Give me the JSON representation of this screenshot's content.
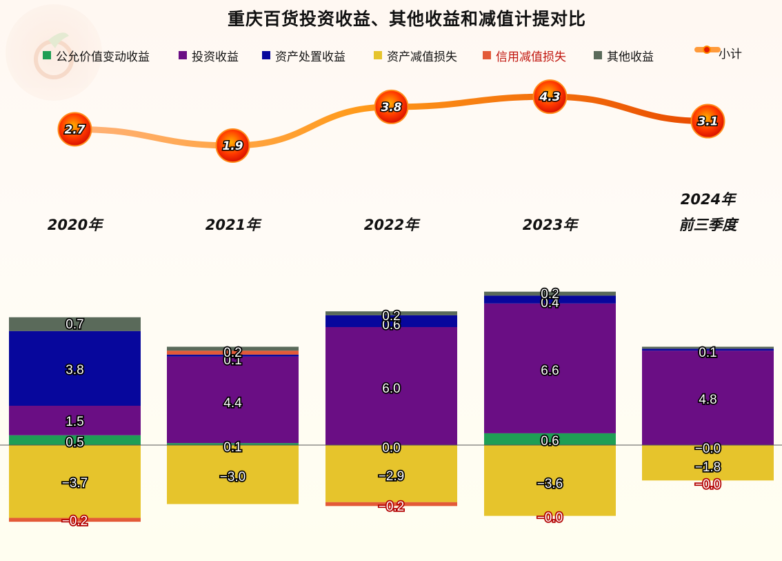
{
  "title": "重庆百货投资收益、其他收益和减值计提对比",
  "chart_data": {
    "type": "bar",
    "stacked": true,
    "categories": [
      "2020年",
      "2021年",
      "2022年",
      "2023年",
      "2024年前三季度"
    ],
    "category_lines": [
      [
        "2020年"
      ],
      [
        "2021年"
      ],
      [
        "2022年"
      ],
      [
        "2023年"
      ],
      [
        "2024年",
        "前三季度"
      ]
    ],
    "series": [
      {
        "name": "公允价值变动收益",
        "color": "#1e9e55",
        "values": [
          0.5,
          0.1,
          0.0,
          0.6,
          -0.0
        ],
        "labels": [
          "0.5",
          "0.1",
          "0.0",
          "0.6",
          "−0.0"
        ]
      },
      {
        "name": "投资收益",
        "color": "#6a0e84",
        "values": [
          1.5,
          4.4,
          6.0,
          6.6,
          4.8
        ],
        "labels": [
          "1.5",
          "4.4",
          "6.0",
          "6.6",
          "4.8"
        ]
      },
      {
        "name": "资产处置收益",
        "color": "#07079c",
        "values": [
          3.8,
          0.1,
          0.6,
          0.4,
          0.1
        ],
        "labels": [
          "3.8",
          "0.1",
          "0.6",
          "0.4",
          "0.1"
        ]
      },
      {
        "name": "资产减值损失",
        "color": "#e6c42c",
        "values": [
          -3.7,
          -3.0,
          -2.9,
          -3.6,
          -1.8
        ],
        "labels": [
          "−3.7",
          "−3.0",
          "−2.9",
          "−3.6",
          "−1.8"
        ]
      },
      {
        "name": "信用减值损失",
        "color": "#e35a38",
        "values": [
          -0.2,
          0.2,
          -0.2,
          -0.0,
          -0.0
        ],
        "labels": [
          "−0.2",
          "0.2",
          "−0.2",
          "−0.0",
          "−0.0"
        ]
      },
      {
        "name": "其他收益",
        "color": "#5a6a5a",
        "values": [
          0.7,
          0.2,
          0.2,
          0.2,
          0.1
        ],
        "labels": [
          "0.7",
          "0.2",
          "0.2",
          "0.2",
          "0.1"
        ]
      }
    ],
    "subtotal": {
      "name": "小计",
      "type": "line",
      "color": "#ff7a00",
      "values": [
        2.7,
        1.9,
        3.8,
        4.3,
        3.1
      ]
    },
    "legend": "top"
  }
}
